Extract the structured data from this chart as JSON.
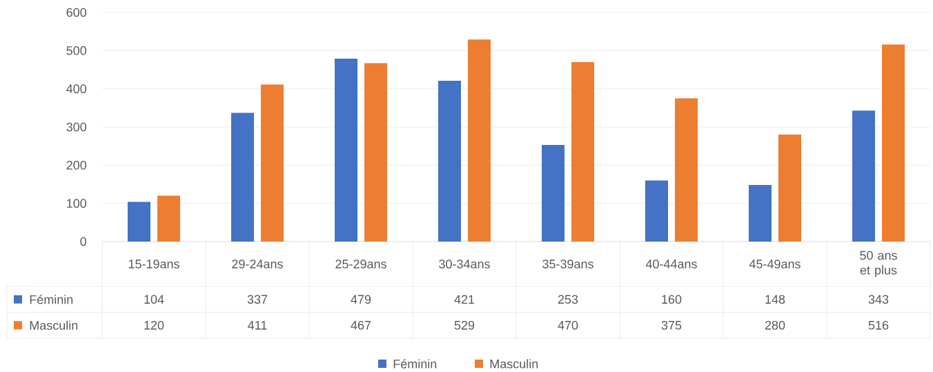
{
  "chart_data": {
    "type": "bar",
    "categories": [
      "15-19ans",
      "29-24ans",
      "25-29ans",
      "30-34ans",
      "35-39ans",
      "40-44ans",
      "45-49ans",
      "50 ans et plus"
    ],
    "series": [
      {
        "name": "Féminin",
        "color": "#4472c4",
        "values": [
          104,
          337,
          479,
          421,
          253,
          160,
          148,
          343
        ]
      },
      {
        "name": "Masculin",
        "color": "#ed7d31",
        "values": [
          120,
          411,
          467,
          529,
          470,
          375,
          280,
          516
        ]
      }
    ],
    "ylim": [
      0,
      600
    ],
    "yticks": [
      0,
      100,
      200,
      300,
      400,
      500,
      600
    ],
    "grid": "y",
    "legend": "bottom",
    "data_labels": true
  }
}
